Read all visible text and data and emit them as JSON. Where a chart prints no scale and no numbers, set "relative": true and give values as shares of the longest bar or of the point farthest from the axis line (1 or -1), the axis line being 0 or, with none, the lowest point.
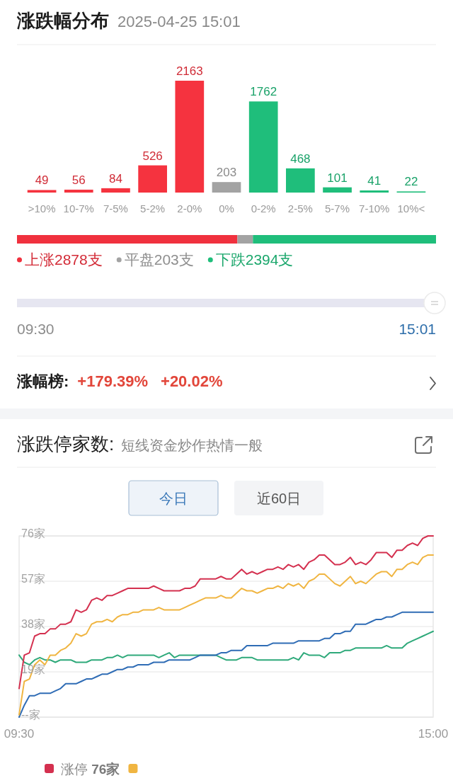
{
  "chart_data": [
    {
      "type": "bar",
      "title": "涨跌幅分布",
      "subtitle": "2025-04-25 15:01",
      "categories": [
        ">10%",
        "10-7%",
        "7-5%",
        "5-2%",
        "2-0%",
        "0%",
        "0-2%",
        "2-5%",
        "5-7%",
        "7-10%",
        "10%<"
      ],
      "values": [
        49,
        56,
        84,
        526,
        2163,
        203,
        1762,
        468,
        101,
        41,
        22
      ],
      "colors": [
        "#f5333f",
        "#f5333f",
        "#f5333f",
        "#f5333f",
        "#f5333f",
        "#a3a3a3",
        "#1fbe7b",
        "#1fbe7b",
        "#1fbe7b",
        "#1fbe7b",
        "#1fbe7b"
      ],
      "data_labels": true
    },
    {
      "type": "bar",
      "orientation": "horizontal",
      "stacked": true,
      "relative": true,
      "categories": [
        null
      ],
      "series": [
        {
          "name": "上涨2878支",
          "color": "#f0313e",
          "values": [
            0.526
          ]
        },
        {
          "name": "平盘203支",
          "color": "#a3a3a3",
          "values": [
            0.037
          ]
        },
        {
          "name": "下跌2394支",
          "color": "#1fbe7b",
          "values": [
            0.437
          ]
        }
      ],
      "legend": "bottom"
    },
    {
      "type": "other",
      "annotations": [
        "09:30",
        "15:01"
      ]
    },
    {
      "type": "other",
      "title": "涨幅榜:",
      "annotations": [
        "+179.39%",
        "+20.02%"
      ]
    },
    {
      "type": "line",
      "title": "涨跌停家数:",
      "subtitle": "短线资金炒作热情一般",
      "annotations": [
        "今日",
        "近60日"
      ],
      "categories": [
        "09:30",
        null,
        null,
        null,
        null,
        null,
        null,
        null,
        null,
        null,
        null,
        null,
        null,
        null,
        null,
        null,
        null,
        null,
        null,
        null,
        null,
        null,
        null,
        null,
        null,
        null,
        null,
        null,
        null,
        null,
        null,
        null,
        null,
        null,
        null,
        null,
        null,
        null,
        null,
        null,
        null,
        null,
        null,
        null,
        null,
        null,
        null,
        null,
        null,
        null,
        null,
        null,
        null,
        null,
        null,
        null,
        null,
        null,
        null,
        null,
        null,
        null,
        null,
        null,
        null,
        null,
        null,
        null,
        null,
        null,
        null,
        null,
        null,
        null,
        null,
        null,
        null,
        null,
        null,
        null,
        "15:00"
      ],
      "ylim": [
        0,
        76
      ],
      "yticks": [
        {
          "value": 0,
          "label": "--家"
        },
        {
          "value": 19,
          "label": "19家"
        },
        {
          "value": 38,
          "label": "38家"
        },
        {
          "value": 57,
          "label": "57家"
        },
        {
          "value": 76,
          "label": "76家"
        }
      ],
      "grid": "y",
      "legend": "bottom left",
      "series": [
        {
          "name": "涨停 76家",
          "color": "#d4304f",
          "values": [
            12,
            26,
            27,
            34,
            35,
            35,
            37,
            37,
            39,
            39,
            40,
            45,
            44,
            45,
            49,
            50,
            49,
            51,
            51,
            52,
            53,
            54,
            54,
            54,
            54,
            54,
            55,
            54,
            53,
            53,
            53,
            53,
            54,
            54,
            55,
            58,
            58,
            58,
            58,
            59,
            58,
            58,
            60,
            62,
            60,
            61,
            60,
            61,
            62,
            62,
            63,
            62,
            64,
            63,
            64,
            62,
            65,
            66,
            68,
            68,
            66,
            64,
            64,
            65,
            67,
            64,
            65,
            64,
            66,
            69,
            69,
            69,
            67,
            70,
            70,
            72,
            73,
            72,
            75,
            76,
            76
          ]
        },
        {
          "color": "#f0b541",
          "values": [
            1,
            15,
            16,
            22,
            24,
            22,
            26,
            26,
            28,
            29,
            31,
            35,
            34,
            35,
            39,
            40,
            40,
            41,
            40,
            42,
            43,
            43,
            44,
            44,
            45,
            45,
            45,
            46,
            45,
            45,
            45,
            45,
            46,
            47,
            48,
            49,
            50,
            50,
            50,
            51,
            50,
            50,
            52,
            54,
            53,
            53,
            52,
            53,
            54,
            54,
            55,
            54,
            56,
            55,
            56,
            54,
            57,
            58,
            60,
            60,
            58,
            56,
            55,
            57,
            59,
            56,
            57,
            56,
            58,
            60,
            61,
            61,
            59,
            62,
            62,
            64,
            65,
            64,
            67,
            68,
            68
          ]
        },
        {
          "color": "#2f6cb5",
          "values": [
            0,
            5,
            9,
            9,
            10,
            10,
            10,
            11,
            12,
            14,
            14,
            14,
            15,
            16,
            16,
            17,
            18,
            18,
            19,
            20,
            20,
            21,
            21,
            22,
            22,
            22,
            23,
            23,
            23,
            24,
            24,
            24,
            24,
            24,
            25,
            26,
            26,
            26,
            26,
            27,
            27,
            28,
            28,
            28,
            30,
            30,
            30,
            30,
            30,
            31,
            31,
            31,
            31,
            31,
            32,
            32,
            32,
            32,
            32,
            33,
            33,
            35,
            35,
            36,
            36,
            39,
            39,
            39,
            40,
            41,
            41,
            42,
            42,
            43,
            44,
            44,
            44,
            44,
            44,
            44,
            44
          ]
        },
        {
          "color": "#2ea97a",
          "values": [
            26,
            23,
            22,
            24,
            25,
            24,
            24,
            23,
            24,
            24,
            24,
            23,
            23,
            23,
            24,
            24,
            24,
            25,
            25,
            26,
            25,
            26,
            26,
            26,
            26,
            26,
            26,
            25,
            26,
            27,
            25,
            26,
            26,
            26,
            26,
            26,
            26,
            26,
            26,
            25,
            24,
            24,
            24,
            25,
            25,
            25,
            24,
            24,
            24,
            24,
            24,
            24,
            24,
            25,
            24,
            27,
            26,
            26,
            26,
            25,
            27,
            27,
            27,
            28,
            28,
            29,
            29,
            29,
            29,
            29,
            29,
            30,
            29,
            29,
            29,
            31,
            32,
            33,
            34,
            35,
            36
          ]
        }
      ]
    }
  ]
}
